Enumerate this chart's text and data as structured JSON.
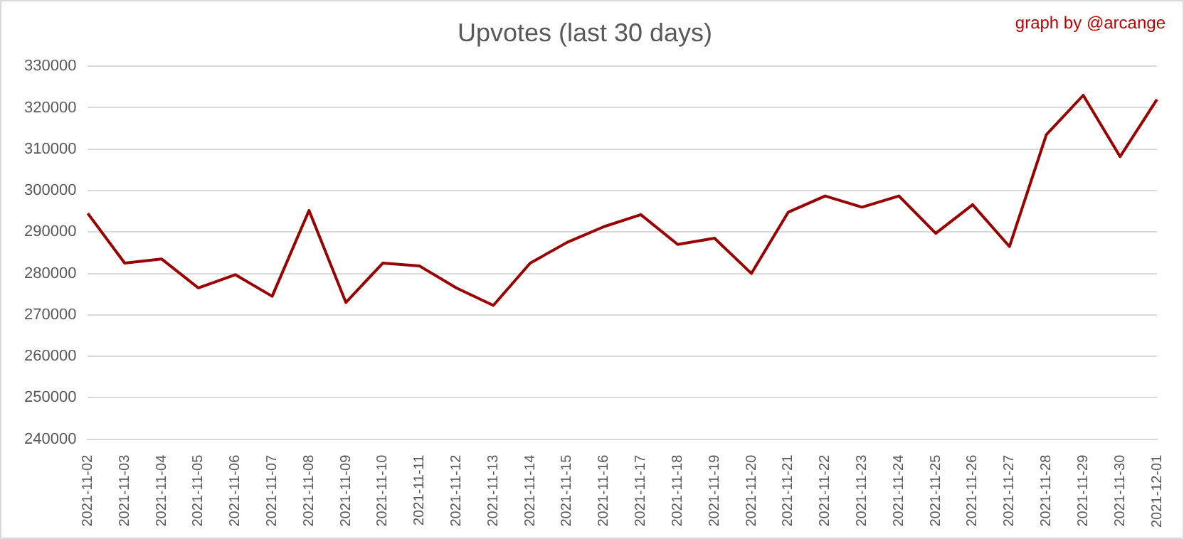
{
  "chart_data": {
    "type": "line",
    "title": "Upvotes (last 30 days)",
    "annotations": [
      "graph by @arcange"
    ],
    "categories": [
      "2021-11-02",
      "2021-11-03",
      "2021-11-04",
      "2021-11-05",
      "2021-11-06",
      "2021-11-07",
      "2021-11-08",
      "2021-11-09",
      "2021-11-10",
      "2021-11-11",
      "2021-11-12",
      "2021-11-13",
      "2021-11-14",
      "2021-11-15",
      "2021-11-16",
      "2021-11-17",
      "2021-11-18",
      "2021-11-19",
      "2021-11-20",
      "2021-11-21",
      "2021-11-22",
      "2021-11-23",
      "2021-11-24",
      "2021-11-25",
      "2021-11-26",
      "2021-11-27",
      "2021-11-28",
      "2021-11-29",
      "2021-11-30",
      "2021-12-01"
    ],
    "series": [
      {
        "color": "#990000",
        "values": [
          294500,
          282500,
          283500,
          276500,
          279700,
          274500,
          295200,
          273000,
          282500,
          281800,
          276500,
          272300,
          282500,
          287500,
          291300,
          294200,
          287000,
          288500,
          280000,
          294800,
          298700,
          296000,
          298700,
          289700,
          296600,
          286500,
          313500,
          323000,
          308200,
          322000
        ]
      }
    ],
    "ylim": [
      240000,
      330000
    ],
    "yticks": [
      240000,
      250000,
      260000,
      270000,
      280000,
      290000,
      300000,
      310000,
      320000,
      330000
    ],
    "grid": "y",
    "legend": false,
    "marker": "none",
    "line_style": "solid"
  }
}
